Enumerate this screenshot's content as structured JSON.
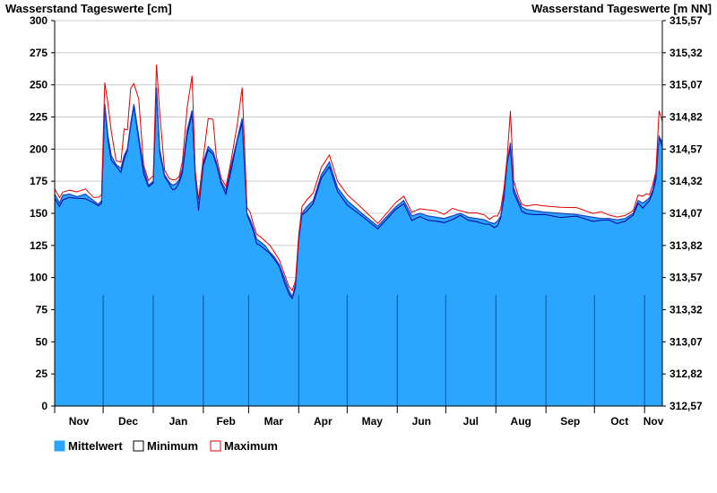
{
  "chart_data": {
    "type": "area",
    "title": "",
    "ylabel_left": "Wasserstand Tageswerte [cm]",
    "ylabel_right": "Wasserstand Tageswerte [m NN]",
    "ylim": [
      0,
      300
    ],
    "yticks_left": [
      0,
      25,
      50,
      75,
      100,
      125,
      150,
      175,
      200,
      225,
      250,
      275,
      300
    ],
    "yticks_right": [
      "312,57",
      "312,82",
      "313,07",
      "313,32",
      "313,57",
      "313,82",
      "314,07",
      "314,32",
      "314,57",
      "314,82",
      "315,07",
      "315,32",
      "315,57"
    ],
    "grid": true,
    "legend_position": "bottom-left",
    "month_labels": [
      "Nov",
      "Dec",
      "Jan",
      "Feb",
      "Mar",
      "Apr",
      "May",
      "Jun",
      "Jul",
      "Aug",
      "Sep",
      "Oct",
      "Nov"
    ],
    "x_start": "2022-11-01",
    "x_end": "2023-11-12",
    "colors": {
      "mittelwert": "#2ba6fe",
      "minimum": "#00009a",
      "maximum": "#e00000",
      "grid": "#cccccc",
      "month_line": "#1a4f8a"
    },
    "series": [
      {
        "name": "Mittelwert",
        "x": [
          "2022-11-01",
          "2022-11-04",
          "2022-11-06",
          "2022-11-10",
          "2022-11-15",
          "2022-11-20",
          "2022-11-25",
          "2022-11-28",
          "2022-11-30",
          "2022-12-02",
          "2022-12-04",
          "2022-12-06",
          "2022-12-09",
          "2022-12-12",
          "2022-12-14",
          "2022-12-16",
          "2022-12-18",
          "2022-12-20",
          "2022-12-23",
          "2022-12-26",
          "2022-12-29",
          "2023-01-01",
          "2023-01-03",
          "2023-01-05",
          "2023-01-08",
          "2023-01-11",
          "2023-01-13",
          "2023-01-15",
          "2023-01-17",
          "2023-01-19",
          "2023-01-22",
          "2023-01-25",
          "2023-01-27",
          "2023-01-29",
          "2023-02-01",
          "2023-02-04",
          "2023-02-07",
          "2023-02-09",
          "2023-02-12",
          "2023-02-15",
          "2023-02-18",
          "2023-02-22",
          "2023-02-25",
          "2023-02-28",
          "2023-03-02",
          "2023-03-04",
          "2023-03-06",
          "2023-03-08",
          "2023-03-11",
          "2023-03-14",
          "2023-03-17",
          "2023-03-20",
          "2023-03-23",
          "2023-03-26",
          "2023-03-28",
          "2023-03-30",
          "2023-04-01",
          "2023-04-03",
          "2023-04-06",
          "2023-04-10",
          "2023-04-15",
          "2023-04-20",
          "2023-04-25",
          "2023-05-01",
          "2023-05-10",
          "2023-05-20",
          "2023-05-31",
          "2023-06-05",
          "2023-06-10",
          "2023-06-15",
          "2023-06-20",
          "2023-06-25",
          "2023-06-30",
          "2023-07-05",
          "2023-07-10",
          "2023-07-15",
          "2023-07-20",
          "2023-07-25",
          "2023-07-28",
          "2023-07-31",
          "2023-08-02",
          "2023-08-04",
          "2023-08-06",
          "2023-08-08",
          "2023-08-10",
          "2023-08-12",
          "2023-08-15",
          "2023-08-17",
          "2023-08-20",
          "2023-08-25",
          "2023-08-31",
          "2023-09-10",
          "2023-09-20",
          "2023-09-30",
          "2023-10-05",
          "2023-10-10",
          "2023-10-15",
          "2023-10-20",
          "2023-10-25",
          "2023-10-28",
          "2023-10-31",
          "2023-11-02",
          "2023-11-04",
          "2023-11-06",
          "2023-11-08",
          "2023-11-10",
          "2023-11-12"
        ],
        "values": [
          165,
          158,
          164,
          165,
          163,
          165,
          160,
          157,
          160,
          235,
          210,
          195,
          188,
          185,
          195,
          200,
          220,
          235,
          210,
          185,
          172,
          175,
          248,
          200,
          180,
          174,
          172,
          173,
          176,
          185,
          215,
          230,
          180,
          155,
          190,
          202,
          198,
          190,
          175,
          168,
          186,
          208,
          224,
          150,
          145,
          138,
          130,
          128,
          125,
          120,
          116,
          110,
          100,
          90,
          85,
          95,
          130,
          150,
          155,
          160,
          180,
          190,
          170,
          160,
          150,
          140,
          155,
          160,
          148,
          150,
          148,
          147,
          146,
          148,
          150,
          147,
          146,
          145,
          143,
          142,
          144,
          148,
          165,
          190,
          205,
          170,
          160,
          155,
          153,
          152,
          151,
          150,
          149,
          147,
          146,
          146,
          145,
          146,
          150,
          160,
          158,
          160,
          162,
          168,
          180,
          210,
          205
        ]
      },
      {
        "name": "Minimum"
      },
      {
        "name": "Maximum"
      }
    ]
  },
  "legend": [
    {
      "label": "Mittelwert",
      "color": "#2ba6fe"
    },
    {
      "label": "Minimum",
      "color": "#000000"
    },
    {
      "label": "Maximum",
      "color": "#e00000"
    }
  ]
}
